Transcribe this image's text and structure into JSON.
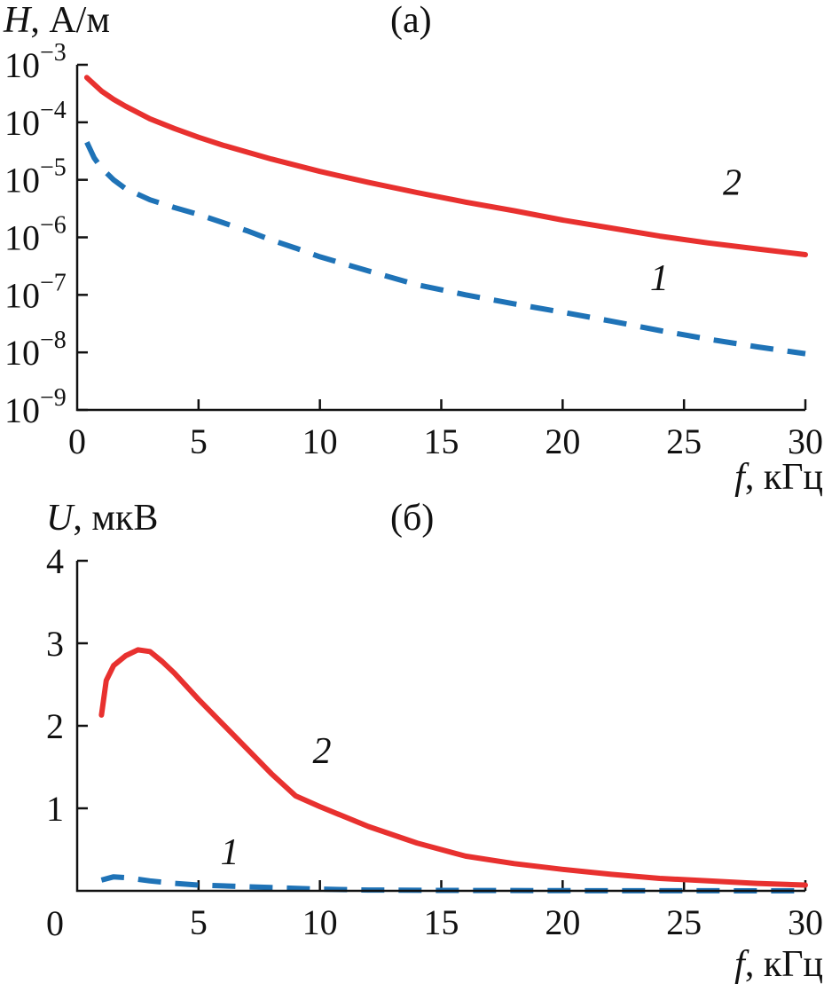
{
  "chart_data": [
    {
      "type": "line",
      "panel_label": "(а)",
      "ylabel_var": "H",
      "ylabel_unit": ", А/м",
      "xlabel_var": "f",
      "xlabel_unit": ", кГц",
      "yscale": "log",
      "xlim": [
        0,
        30
      ],
      "ylim": [
        1e-09,
        0.001
      ],
      "x_ticks": [
        "0",
        "5",
        "10",
        "15",
        "20",
        "25",
        "30"
      ],
      "y_ticks": [
        {
          "base": "10",
          "exp": "−9"
        },
        {
          "base": "10",
          "exp": "−8"
        },
        {
          "base": "10",
          "exp": "−7"
        },
        {
          "base": "10",
          "exp": "−6"
        },
        {
          "base": "10",
          "exp": "−5"
        },
        {
          "base": "10",
          "exp": "−4"
        },
        {
          "base": "10",
          "exp": "−3"
        }
      ],
      "series": [
        {
          "name": "1",
          "color": "#1f73b7",
          "style": "dashed",
          "x": [
            0.4,
            0.7,
            1,
            1.5,
            2,
            3,
            4,
            5,
            6,
            7,
            8,
            9,
            10,
            12,
            14,
            16,
            18,
            20,
            22,
            24,
            26,
            28,
            30
          ],
          "y": [
            4.5e-05,
            2.4e-05,
            1.6e-05,
            1e-05,
            7e-06,
            4.5e-06,
            3.3e-06,
            2.5e-06,
            1.8e-06,
            1.3e-06,
            9e-07,
            6.5e-07,
            4.6e-07,
            2.6e-07,
            1.5e-07,
            1e-07,
            7e-08,
            5e-08,
            3.5e-08,
            2.4e-08,
            1.7e-08,
            1.25e-08,
            9.5e-09
          ]
        },
        {
          "name": "2",
          "color": "#e8312f",
          "style": "solid",
          "x": [
            0.4,
            1,
            1.5,
            2,
            3,
            4,
            5,
            6,
            8,
            10,
            12,
            14,
            16,
            18,
            20,
            22,
            24,
            26,
            28,
            30
          ],
          "y": [
            0.0006,
            0.00035,
            0.00025,
            0.00019,
            0.000115,
            7.8e-05,
            5.5e-05,
            4e-05,
            2.3e-05,
            1.4e-05,
            9e-06,
            6e-06,
            4.1e-06,
            2.9e-06,
            2e-06,
            1.45e-06,
            1.05e-06,
            8e-07,
            6.3e-07,
            5e-07
          ]
        }
      ],
      "annotations": [
        {
          "text": "1",
          "x": 23.6,
          "y": 1.2e-07
        },
        {
          "text": "2",
          "x": 26.6,
          "y": 5.5e-06
        }
      ]
    },
    {
      "type": "line",
      "panel_label": "(б)",
      "ylabel_var": "U",
      "ylabel_unit": ", мкВ",
      "xlabel_var": "f",
      "xlabel_unit": ", кГц",
      "xlim": [
        0,
        30
      ],
      "ylim": [
        0,
        4
      ],
      "x_ticks": [
        "0",
        "5",
        "10",
        "15",
        "20",
        "25",
        "30"
      ],
      "y_ticks": [
        "1",
        "2",
        "3",
        "4"
      ],
      "series": [
        {
          "name": "1",
          "color": "#1f73b7",
          "style": "dashed",
          "x": [
            1,
            1.5,
            2,
            3,
            4,
            5,
            6,
            8,
            10,
            12,
            15,
            20,
            25,
            30
          ],
          "y": [
            0.13,
            0.17,
            0.16,
            0.12,
            0.09,
            0.07,
            0.06,
            0.04,
            0.02,
            0.01,
            0.005,
            0.002,
            0.001,
            0.0
          ]
        },
        {
          "name": "2",
          "color": "#e8312f",
          "style": "solid",
          "x": [
            1,
            1.2,
            1.5,
            2,
            2.5,
            3,
            3.5,
            4,
            5,
            6,
            7,
            8,
            9,
            10,
            12,
            14,
            16,
            18,
            20,
            22,
            24,
            26,
            28,
            30
          ],
          "y": [
            2.13,
            2.55,
            2.73,
            2.85,
            2.92,
            2.9,
            2.78,
            2.64,
            2.32,
            2.02,
            1.72,
            1.42,
            1.15,
            1.02,
            0.78,
            0.58,
            0.42,
            0.33,
            0.26,
            0.2,
            0.15,
            0.12,
            0.09,
            0.07
          ]
        }
      ],
      "annotations": [
        {
          "text": "1",
          "x": 5.9,
          "y": 0.32
        },
        {
          "text": "2",
          "x": 9.7,
          "y": 1.55
        }
      ]
    }
  ]
}
